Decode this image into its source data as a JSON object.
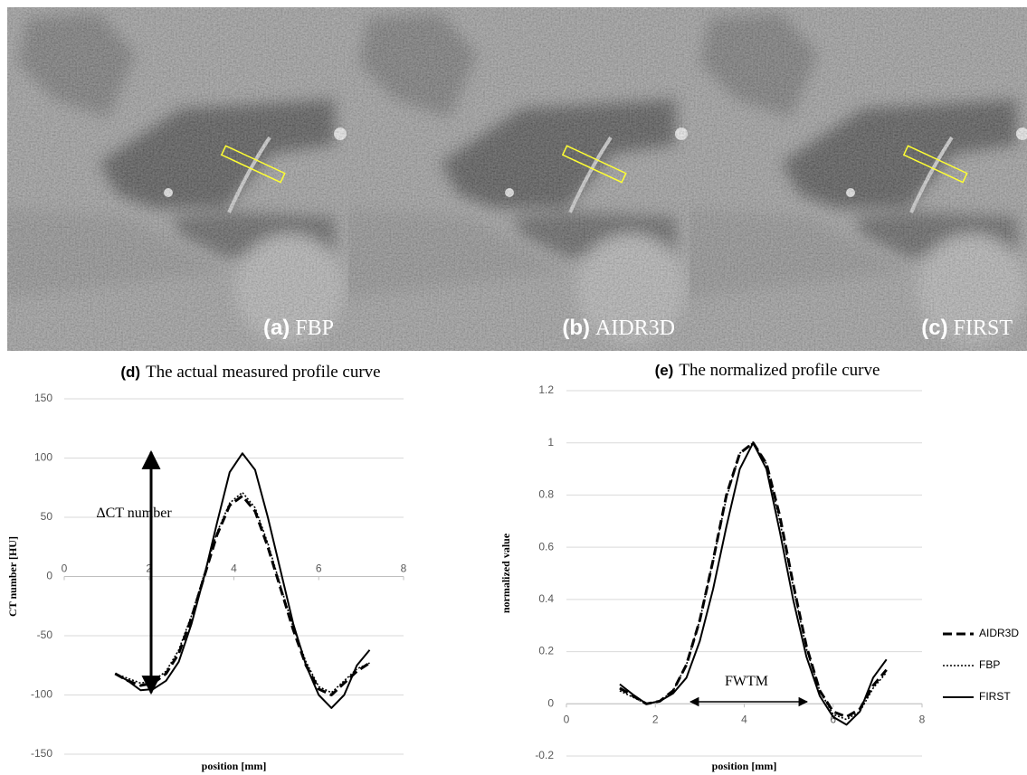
{
  "panels": [
    {
      "label": "(a)",
      "name": "FBP"
    },
    {
      "label": "(b)",
      "name": "AIDR3D"
    },
    {
      "label": "(c)",
      "name": "FIRST"
    }
  ],
  "chart_data": [
    {
      "type": "line",
      "label": "(d)",
      "title": "The actual measured profile curve",
      "x_label": "position [mm]",
      "y_label": "CT number [HU]",
      "annotations": [
        "ΔCT number"
      ],
      "x": [
        1.2,
        1.5,
        1.8,
        2.1,
        2.4,
        2.7,
        3.0,
        3.3,
        3.6,
        3.9,
        4.2,
        4.5,
        4.8,
        5.1,
        5.4,
        5.7,
        6.0,
        6.3,
        6.6,
        6.9,
        7.2
      ],
      "series": [
        {
          "name": "AIDR3D",
          "color": "#000000",
          "line_style": "dashed",
          "values": [
            -82,
            -88,
            -92,
            -90,
            -82,
            -65,
            -35,
            0,
            35,
            60,
            68,
            55,
            25,
            -10,
            -45,
            -75,
            -95,
            -100,
            -90,
            -80,
            -73
          ]
        },
        {
          "name": "FBP",
          "color": "#000000",
          "line_style": "dotted",
          "values": [
            -82,
            -86,
            -90,
            -88,
            -80,
            -62,
            -33,
            2,
            37,
            62,
            71,
            58,
            28,
            -8,
            -43,
            -72,
            -93,
            -98,
            -88,
            -78,
            -73
          ]
        },
        {
          "name": "FIRST",
          "color": "#000000",
          "line_style": "solid",
          "values": [
            -82,
            -88,
            -96,
            -95,
            -88,
            -72,
            -40,
            0,
            45,
            88,
            104,
            90,
            50,
            5,
            -40,
            -75,
            -100,
            -111,
            -100,
            -75,
            -62
          ]
        }
      ],
      "xlim": [
        0,
        8
      ],
      "xticks": [
        0,
        2,
        4,
        6,
        8
      ],
      "ylim": [
        -150,
        150
      ],
      "yticks": [
        -150,
        -100,
        -50,
        0,
        50,
        100,
        150
      ],
      "grid": true
    },
    {
      "type": "line",
      "label": "(e)",
      "title": "The normalized profile curve",
      "x_label": "position [mm]",
      "y_label": "normalized value",
      "annotations": [
        "FWTM"
      ],
      "x": [
        1.2,
        1.5,
        1.8,
        2.1,
        2.4,
        2.7,
        3.0,
        3.3,
        3.6,
        3.9,
        4.2,
        4.5,
        4.8,
        5.1,
        5.4,
        5.7,
        6.0,
        6.3,
        6.6,
        6.9,
        7.2
      ],
      "series": [
        {
          "name": "AIDR3D",
          "color": "#000000",
          "line_style": "dashed",
          "values": [
            0.06,
            0.03,
            0.0,
            0.01,
            0.05,
            0.15,
            0.32,
            0.55,
            0.8,
            0.96,
            1.0,
            0.92,
            0.72,
            0.46,
            0.22,
            0.05,
            -0.03,
            -0.05,
            -0.02,
            0.07,
            0.13
          ]
        },
        {
          "name": "FBP",
          "color": "#000000",
          "line_style": "dotted",
          "values": [
            0.05,
            0.025,
            0.0,
            0.01,
            0.05,
            0.15,
            0.32,
            0.55,
            0.79,
            0.96,
            1.0,
            0.92,
            0.7,
            0.45,
            0.21,
            0.05,
            -0.04,
            -0.06,
            -0.03,
            0.06,
            0.12
          ]
        },
        {
          "name": "FIRST",
          "color": "#000000",
          "line_style": "solid",
          "values": [
            0.075,
            0.035,
            0.0,
            0.01,
            0.04,
            0.1,
            0.24,
            0.44,
            0.68,
            0.9,
            1.0,
            0.9,
            0.66,
            0.4,
            0.18,
            0.03,
            -0.05,
            -0.08,
            -0.03,
            0.1,
            0.17
          ]
        }
      ],
      "xlim": [
        0,
        8
      ],
      "xticks": [
        0,
        2,
        4,
        6,
        8
      ],
      "ylim": [
        -0.2,
        1.2
      ],
      "yticks": [
        -0.2,
        0,
        0.2,
        0.4,
        0.6,
        0.8,
        1,
        1.2
      ],
      "grid": true,
      "legend": "right"
    }
  ]
}
